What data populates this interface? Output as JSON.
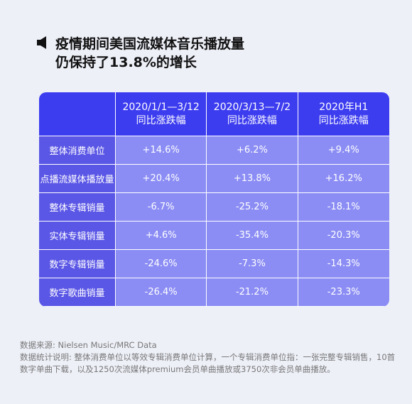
{
  "header": {
    "title": [
      "疫情期间美国流媒体音乐播放量",
      "仍保持了13.8%的增长"
    ]
  },
  "table": {
    "columns": [
      [
        "2020/1/1—3/12",
        "同比涨跌幅"
      ],
      [
        "2020/3/13—7/2",
        "同比涨跌幅"
      ],
      [
        "2020年H1",
        "同比涨跌幅"
      ]
    ],
    "rows": [
      {
        "label": "整体消费单位",
        "values": [
          "+14.6%",
          "+6.2%",
          "+9.4%"
        ]
      },
      {
        "label": "点播流媒体播放量",
        "values": [
          "+20.4%",
          "+13.8%",
          "+16.2%"
        ]
      },
      {
        "label": "整体专辑销量",
        "values": [
          "-6.7%",
          "-25.2%",
          "-18.1%"
        ]
      },
      {
        "label": "实体专辑销量",
        "values": [
          "+4.6%",
          "-35.4%",
          "-20.3%"
        ]
      },
      {
        "label": "数字专辑销量",
        "values": [
          "-24.6%",
          "-7.3%",
          "-14.3%"
        ]
      },
      {
        "label": "数字歌曲销量",
        "values": [
          "-26.4%",
          "-21.2%",
          "-23.3%"
        ]
      }
    ]
  },
  "footer": {
    "source": "数据来源: Nielsen Music/MRC Data",
    "note": "数据统计说明: 整体消费单位以等效专辑消费单位计算，一个专辑消费单位指：一张完整专辑销售，10首数字单曲下载，以及1250次流媒体premium会员单曲播放或3750次非会员单曲播放。"
  }
}
